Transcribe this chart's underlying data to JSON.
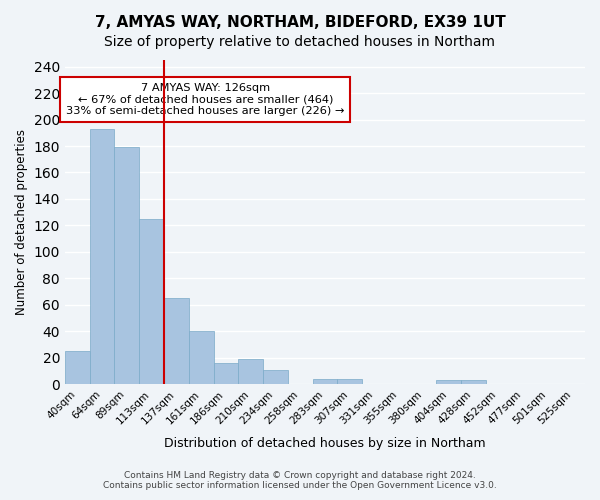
{
  "title": "7, AMYAS WAY, NORTHAM, BIDEFORD, EX39 1UT",
  "subtitle": "Size of property relative to detached houses in Northam",
  "xlabel": "Distribution of detached houses by size in Northam",
  "ylabel": "Number of detached properties",
  "bin_labels": [
    "40sqm",
    "64sqm",
    "89sqm",
    "113sqm",
    "137sqm",
    "161sqm",
    "186sqm",
    "210sqm",
    "234sqm",
    "258sqm",
    "283sqm",
    "307sqm",
    "331sqm",
    "355sqm",
    "380sqm",
    "404sqm",
    "428sqm",
    "452sqm",
    "477sqm",
    "501sqm",
    "525sqm"
  ],
  "bar_heights": [
    25,
    193,
    179,
    125,
    65,
    40,
    16,
    19,
    11,
    0,
    4,
    4,
    0,
    0,
    0,
    3,
    3,
    0,
    0,
    0,
    0
  ],
  "bar_color": "#a8c4e0",
  "bar_edge_color": "#7aaac8",
  "vline_x": 3.5,
  "vline_color": "#cc0000",
  "ylim": [
    0,
    245
  ],
  "yticks": [
    0,
    20,
    40,
    60,
    80,
    100,
    120,
    140,
    160,
    180,
    200,
    220,
    240
  ],
  "annotation_title": "7 AMYAS WAY: 126sqm",
  "annotation_line1": "← 67% of detached houses are smaller (464)",
  "annotation_line2": "33% of semi-detached houses are larger (226) →",
  "footer_line1": "Contains HM Land Registry data © Crown copyright and database right 2024.",
  "footer_line2": "Contains public sector information licensed under the Open Government Licence v3.0.",
  "bg_color": "#f0f4f8",
  "grid_color": "#ffffff",
  "title_fontsize": 11,
  "subtitle_fontsize": 10
}
